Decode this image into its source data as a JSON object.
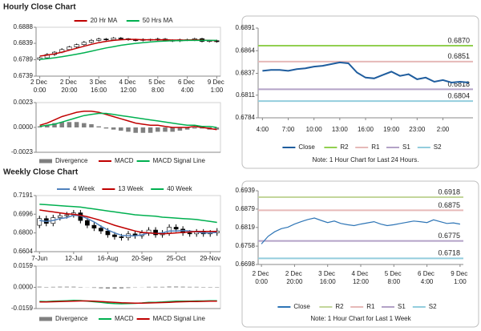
{
  "headings": [
    "Hourly Close Chart",
    "Weekly Close Chart"
  ],
  "chart_data": [
    {
      "type": "candlestick",
      "categories": [
        "2 Dec 0:00",
        null,
        null,
        null,
        "2 Dec 20:00",
        null,
        null,
        null,
        "3 Dec 16:00",
        null,
        null,
        null,
        "4 Dec 12:00",
        null,
        null,
        null,
        "5 Dec 8:00",
        null,
        null,
        null,
        "6 Dec 4:00",
        null,
        null,
        null,
        "9 Dec 1:00"
      ],
      "ohlc": {
        "open": [
          0.679,
          0.6795,
          0.6805,
          0.6812,
          0.682,
          0.6828,
          0.6835,
          0.6842,
          0.6848,
          0.6852,
          0.685,
          0.6855,
          0.6853,
          0.685,
          0.6848,
          0.6851,
          0.6849,
          0.6852,
          0.6848,
          0.6846,
          0.685,
          0.6849,
          0.6853,
          0.6845,
          0.6847
        ],
        "high": [
          0.6798,
          0.6809,
          0.6815,
          0.6824,
          0.6831,
          0.6838,
          0.6846,
          0.6852,
          0.6856,
          0.6855,
          0.6858,
          0.6858,
          0.6855,
          0.6853,
          0.6854,
          0.6853,
          0.6856,
          0.6855,
          0.6851,
          0.6853,
          0.6853,
          0.6856,
          0.6856,
          0.685,
          0.685
        ],
        "low": [
          0.6786,
          0.6792,
          0.6801,
          0.6809,
          0.6817,
          0.6825,
          0.6832,
          0.6839,
          0.6845,
          0.6847,
          0.6847,
          0.685,
          0.6847,
          0.6845,
          0.6845,
          0.6846,
          0.6846,
          0.6845,
          0.6843,
          0.6843,
          0.6846,
          0.6846,
          0.6842,
          0.6842,
          0.6841
        ],
        "close": [
          0.6795,
          0.6805,
          0.6812,
          0.682,
          0.6828,
          0.6835,
          0.6842,
          0.6848,
          0.6852,
          0.685,
          0.6855,
          0.6853,
          0.685,
          0.6848,
          0.6851,
          0.6849,
          0.6852,
          0.6848,
          0.6846,
          0.685,
          0.6849,
          0.6853,
          0.6845,
          0.6847,
          0.6844
        ]
      },
      "series": [
        {
          "name": "20 Hr MA",
          "color": "#c00000",
          "values": [
            0.68,
            0.6803,
            0.6807,
            0.6812,
            0.6818,
            0.6824,
            0.683,
            0.6836,
            0.6841,
            0.6845,
            0.6848,
            0.685,
            0.6851,
            0.6851,
            0.685,
            0.685,
            0.685,
            0.685,
            0.6849,
            0.6849,
            0.6849,
            0.685,
            0.6849,
            0.6848,
            0.6847
          ]
        },
        {
          "name": "50 Hrs MA",
          "color": "#00b050",
          "values": [
            0.679,
            0.6792,
            0.6795,
            0.6798,
            0.6802,
            0.6806,
            0.681,
            0.6815,
            0.682,
            0.6825,
            0.6829,
            0.6833,
            0.6836,
            0.6839,
            0.6841,
            0.6843,
            0.6845,
            0.6846,
            0.6847,
            0.6847,
            0.6848,
            0.6848,
            0.6848,
            0.6848,
            0.6848
          ]
        }
      ],
      "ylim": [
        0.6739,
        0.6888
      ],
      "yticks": [
        0.6888,
        0.6839,
        0.6789,
        0.6739
      ],
      "legend": "top"
    },
    {
      "type": "combo",
      "series": [
        {
          "name": "Divergence",
          "color": "#808080",
          "style": "bar",
          "values": [
            0.0001,
            0.0002,
            0.0004,
            0.0005,
            0.0005,
            0.0005,
            0.0004,
            0.0003,
            0.0001,
            -0.0001,
            -0.0002,
            -0.0003,
            -0.0004,
            -0.0005,
            -0.0005,
            -0.0005,
            -0.0004,
            -0.0004,
            -0.0004,
            -0.0003,
            -0.0002,
            -0.0001,
            -0.0001,
            -0.0002,
            -0.0002
          ]
        },
        {
          "name": "MACD",
          "color": "#c00000",
          "style": "line",
          "values": [
            0.0002,
            0.0004,
            0.0007,
            0.001,
            0.0012,
            0.0014,
            0.0015,
            0.0015,
            0.0014,
            0.0012,
            0.001,
            0.0008,
            0.0006,
            0.0004,
            0.0003,
            0.0002,
            0.0002,
            0.0001,
            0,
            0,
            0,
            0.0001,
            0,
            -0.0001,
            -0.0002
          ]
        },
        {
          "name": "MACD Signal Line",
          "color": "#00b050",
          "style": "line",
          "values": [
            0.0001,
            0.0002,
            0.0003,
            0.0005,
            0.0007,
            0.0009,
            0.0011,
            0.0012,
            0.0013,
            0.0013,
            0.0012,
            0.0011,
            0.001,
            0.0009,
            0.0008,
            0.0007,
            0.0006,
            0.0005,
            0.0004,
            0.0003,
            0.0002,
            0.0002,
            0.0001,
            0.0001,
            0
          ]
        }
      ],
      "ylim": [
        -0.0023,
        0.0023
      ],
      "yticks": [
        0.0023,
        {
          "value": 0,
          "label": "0.0000"
        },
        -0.0023
      ],
      "legend": "bottom"
    },
    {
      "type": "line",
      "categories": [
        "4:00",
        null,
        null,
        "7:00",
        null,
        null,
        "10:00",
        null,
        null,
        "13:00",
        null,
        null,
        "16:00",
        null,
        null,
        "19:00",
        null,
        null,
        "23:00",
        null,
        null,
        "2:00",
        null,
        null,
        null
      ],
      "series": [
        {
          "name": "Close",
          "color": "#1f5d9e",
          "values": [
            0.684,
            0.6841,
            0.6841,
            0.684,
            0.6842,
            0.6843,
            0.6845,
            0.6846,
            0.6848,
            0.685,
            0.6849,
            0.6838,
            0.6832,
            0.6831,
            0.6835,
            0.6839,
            0.6834,
            0.6836,
            0.683,
            0.6832,
            0.6827,
            0.6829,
            0.6826,
            0.6827,
            0.6826
          ]
        }
      ],
      "levels": [
        {
          "name": "R2",
          "color": "#92d050",
          "value": 0.687,
          "label": "0.6870"
        },
        {
          "name": "R1",
          "color": "#e6b9b8",
          "value": 0.6851,
          "label": "0.6851"
        },
        {
          "name": "S1",
          "color": "#b3a2c7",
          "value": 0.6818,
          "label": "0.6818"
        },
        {
          "name": "S2",
          "color": "#93cddd",
          "value": 0.6804,
          "label": "0.6804"
        }
      ],
      "ylim": [
        0.6784,
        0.6891
      ],
      "yticks": [
        0.6891,
        0.6864,
        0.6837,
        0.6811,
        0.6784
      ],
      "legend": "bottom",
      "note": "Note: 1 Hour Chart for Last 24 Hours."
    },
    {
      "type": "candlestick",
      "categories": [
        "7-Jun",
        null,
        null,
        null,
        null,
        "12-Jul",
        null,
        null,
        null,
        null,
        "16-Aug",
        null,
        null,
        null,
        null,
        "20-Sep",
        null,
        null,
        null,
        null,
        "25-Oct",
        null,
        null,
        null,
        null,
        "29-Nov",
        null
      ],
      "ohlc": {
        "open": [
          0.688,
          0.695,
          0.69,
          0.696,
          0.698,
          0.699,
          0.701,
          0.693,
          0.688,
          0.685,
          0.682,
          0.678,
          0.676,
          0.675,
          0.679,
          0.677,
          0.68,
          0.683,
          0.678,
          0.68,
          0.686,
          0.684,
          0.68,
          0.679,
          0.681,
          0.679,
          0.68
        ],
        "high": [
          0.698,
          0.698,
          0.699,
          0.701,
          0.702,
          0.704,
          0.704,
          0.696,
          0.691,
          0.688,
          0.685,
          0.681,
          0.679,
          0.682,
          0.682,
          0.683,
          0.686,
          0.686,
          0.683,
          0.689,
          0.689,
          0.687,
          0.683,
          0.684,
          0.684,
          0.683,
          0.685
        ],
        "low": [
          0.685,
          0.687,
          0.687,
          0.693,
          0.695,
          0.696,
          0.69,
          0.685,
          0.682,
          0.679,
          0.675,
          0.673,
          0.672,
          0.672,
          0.674,
          0.674,
          0.677,
          0.675,
          0.675,
          0.677,
          0.681,
          0.677,
          0.676,
          0.676,
          0.676,
          0.676,
          0.677
        ],
        "close": [
          0.695,
          0.69,
          0.696,
          0.698,
          0.699,
          0.701,
          0.693,
          0.688,
          0.685,
          0.682,
          0.678,
          0.676,
          0.675,
          0.679,
          0.677,
          0.68,
          0.683,
          0.678,
          0.68,
          0.686,
          0.684,
          0.68,
          0.679,
          0.681,
          0.679,
          0.68,
          0.682
        ]
      },
      "series": [
        {
          "name": "4 Week",
          "color": "#4f81bd",
          "values": [
            0.693,
            0.692,
            0.693,
            0.695,
            0.696,
            0.6985,
            0.698,
            0.695,
            0.6915,
            0.687,
            0.683,
            0.68,
            0.6775,
            0.677,
            0.677,
            0.678,
            0.68,
            0.6795,
            0.68,
            0.682,
            0.682,
            0.6825,
            0.682,
            0.681,
            0.68,
            0.68,
            0.6805
          ]
        },
        {
          "name": "13 Week",
          "color": "#c00000",
          "values": [
            0.704,
            0.703,
            0.702,
            0.701,
            0.7,
            0.6995,
            0.6985,
            0.697,
            0.695,
            0.693,
            0.6905,
            0.688,
            0.686,
            0.684,
            0.682,
            0.6805,
            0.68,
            0.6795,
            0.679,
            0.6795,
            0.68,
            0.6805,
            0.681,
            0.6815,
            0.6815,
            0.6815,
            0.6815
          ]
        },
        {
          "name": "40 Week",
          "color": "#00b050",
          "values": [
            0.71,
            0.7095,
            0.709,
            0.7085,
            0.708,
            0.7075,
            0.707,
            0.706,
            0.705,
            0.704,
            0.703,
            0.702,
            0.701,
            0.7,
            0.699,
            0.6985,
            0.698,
            0.6975,
            0.6965,
            0.696,
            0.6955,
            0.695,
            0.6945,
            0.694,
            0.693,
            0.692,
            0.691
          ]
        }
      ],
      "ylim": [
        0.6604,
        0.7191
      ],
      "yticks": [
        0.7191,
        0.6996,
        {
          "value": 0.68,
          "label": "0.6800"
        },
        0.6604
      ],
      "legend": "top"
    },
    {
      "type": "combo",
      "series": [
        {
          "name": "Divergence",
          "color": "#808080",
          "style": "bar",
          "values": [
            0.0005,
            0.0003,
            0.0004,
            0.0005,
            0.0005,
            0.0005,
            0.0003,
            -0.0001,
            -0.0004,
            -0.0007,
            -0.0009,
            -0.0009,
            -0.0008,
            -0.0005,
            -0.0002,
            0.0001,
            0.0004,
            0.0004,
            0.0004,
            0.0006,
            0.0006,
            0.0005,
            0.0004,
            0.0004,
            0.0003,
            0.0003,
            0.0003
          ]
        },
        {
          "name": "MACD",
          "color": "#00b050",
          "style": "line",
          "values": [
            -0.0105,
            -0.0106,
            -0.0104,
            -0.0102,
            -0.01,
            -0.0098,
            -0.0099,
            -0.0103,
            -0.0108,
            -0.0113,
            -0.0118,
            -0.0121,
            -0.0123,
            -0.0122,
            -0.012,
            -0.0117,
            -0.0113,
            -0.0112,
            -0.011,
            -0.0106,
            -0.0104,
            -0.0103,
            -0.0103,
            -0.0102,
            -0.0102,
            -0.0101,
            -0.01
          ]
        },
        {
          "name": "MACD Signal Line",
          "color": "#c00000",
          "style": "line",
          "values": [
            -0.011,
            -0.0109,
            -0.0108,
            -0.0107,
            -0.0105,
            -0.0103,
            -0.0102,
            -0.0102,
            -0.0104,
            -0.0106,
            -0.0109,
            -0.0112,
            -0.0115,
            -0.0117,
            -0.0118,
            -0.0118,
            -0.0117,
            -0.0116,
            -0.0114,
            -0.0112,
            -0.011,
            -0.0108,
            -0.0107,
            -0.0106,
            -0.0105,
            -0.0104,
            -0.0103
          ]
        }
      ],
      "ylim": [
        -0.0159,
        0.0159
      ],
      "yticks": [
        0.0159,
        {
          "value": 0,
          "label": "0.0000"
        },
        -0.0159
      ],
      "legend": "bottom"
    },
    {
      "type": "line",
      "categories": [
        "2 Dec 0:00",
        null,
        null,
        null,
        null,
        "2 Dec 20:00",
        null,
        null,
        null,
        null,
        "3 Dec 16:00",
        null,
        null,
        null,
        null,
        "4 Dec 12:00",
        null,
        null,
        null,
        null,
        "5 Dec 8:00",
        null,
        null,
        null,
        null,
        "6 Dec 4:00",
        null,
        null,
        null,
        null,
        "9 Dec 1:00"
      ],
      "series": [
        {
          "name": "Close",
          "color": "#2e75b6",
          "values": [
            0.6765,
            0.679,
            0.6805,
            0.6815,
            0.682,
            0.683,
            0.6838,
            0.6845,
            0.685,
            0.6842,
            0.6835,
            0.684,
            0.6832,
            0.6828,
            0.6825,
            0.683,
            0.6834,
            0.6838,
            0.683,
            0.6825,
            0.6828,
            0.6832,
            0.6836,
            0.684,
            0.6838,
            0.6835,
            0.6844,
            0.6838,
            0.6832,
            0.6834,
            0.683
          ]
        }
      ],
      "levels": [
        {
          "name": "R2",
          "color": "#c3d69b",
          "value": 0.6918
        },
        {
          "name": "R1",
          "color": "#e6b9b8",
          "value": 0.6875
        },
        {
          "name": "S1",
          "color": "#b3a2c7",
          "value": 0.6775
        },
        {
          "name": "S2",
          "color": "#93cddd",
          "value": 0.6718
        }
      ],
      "ylim": [
        0.6698,
        0.6939
      ],
      "yticks": [
        0.6939,
        0.6879,
        0.6819,
        0.6758,
        0.6698
      ],
      "legend": "bottom",
      "note": "Note: 1 Hour Chart for Last 1 Week"
    }
  ]
}
